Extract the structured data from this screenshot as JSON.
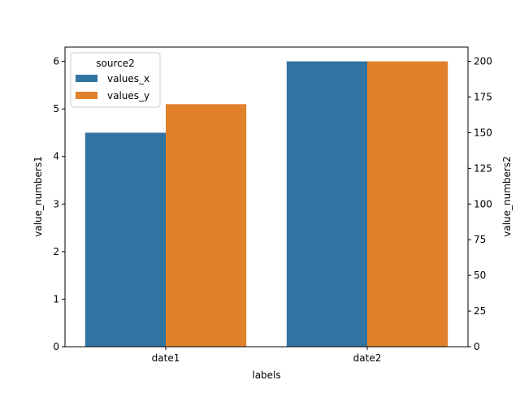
{
  "chart_data": {
    "type": "bar",
    "title": "",
    "xlabel": "labels",
    "ylabel": "value_numbers1",
    "y2label": "value_numbers2",
    "categories": [
      "date1",
      "date2"
    ],
    "series": [
      {
        "name": "values_x",
        "values": [
          4.5,
          6
        ],
        "color": "#3274a1"
      },
      {
        "name": "values_y",
        "values": [
          5.1,
          6
        ],
        "color": "#e1812c"
      }
    ],
    "ylim": [
      0,
      6.3
    ],
    "yticks": [
      0,
      1,
      2,
      3,
      4,
      5,
      6
    ],
    "y2lim": [
      0,
      210
    ],
    "y2ticks": [
      0,
      25,
      50,
      75,
      100,
      125,
      150,
      175,
      200
    ],
    "legend": {
      "title": "source2",
      "placement": "top-left"
    },
    "grid": false
  }
}
